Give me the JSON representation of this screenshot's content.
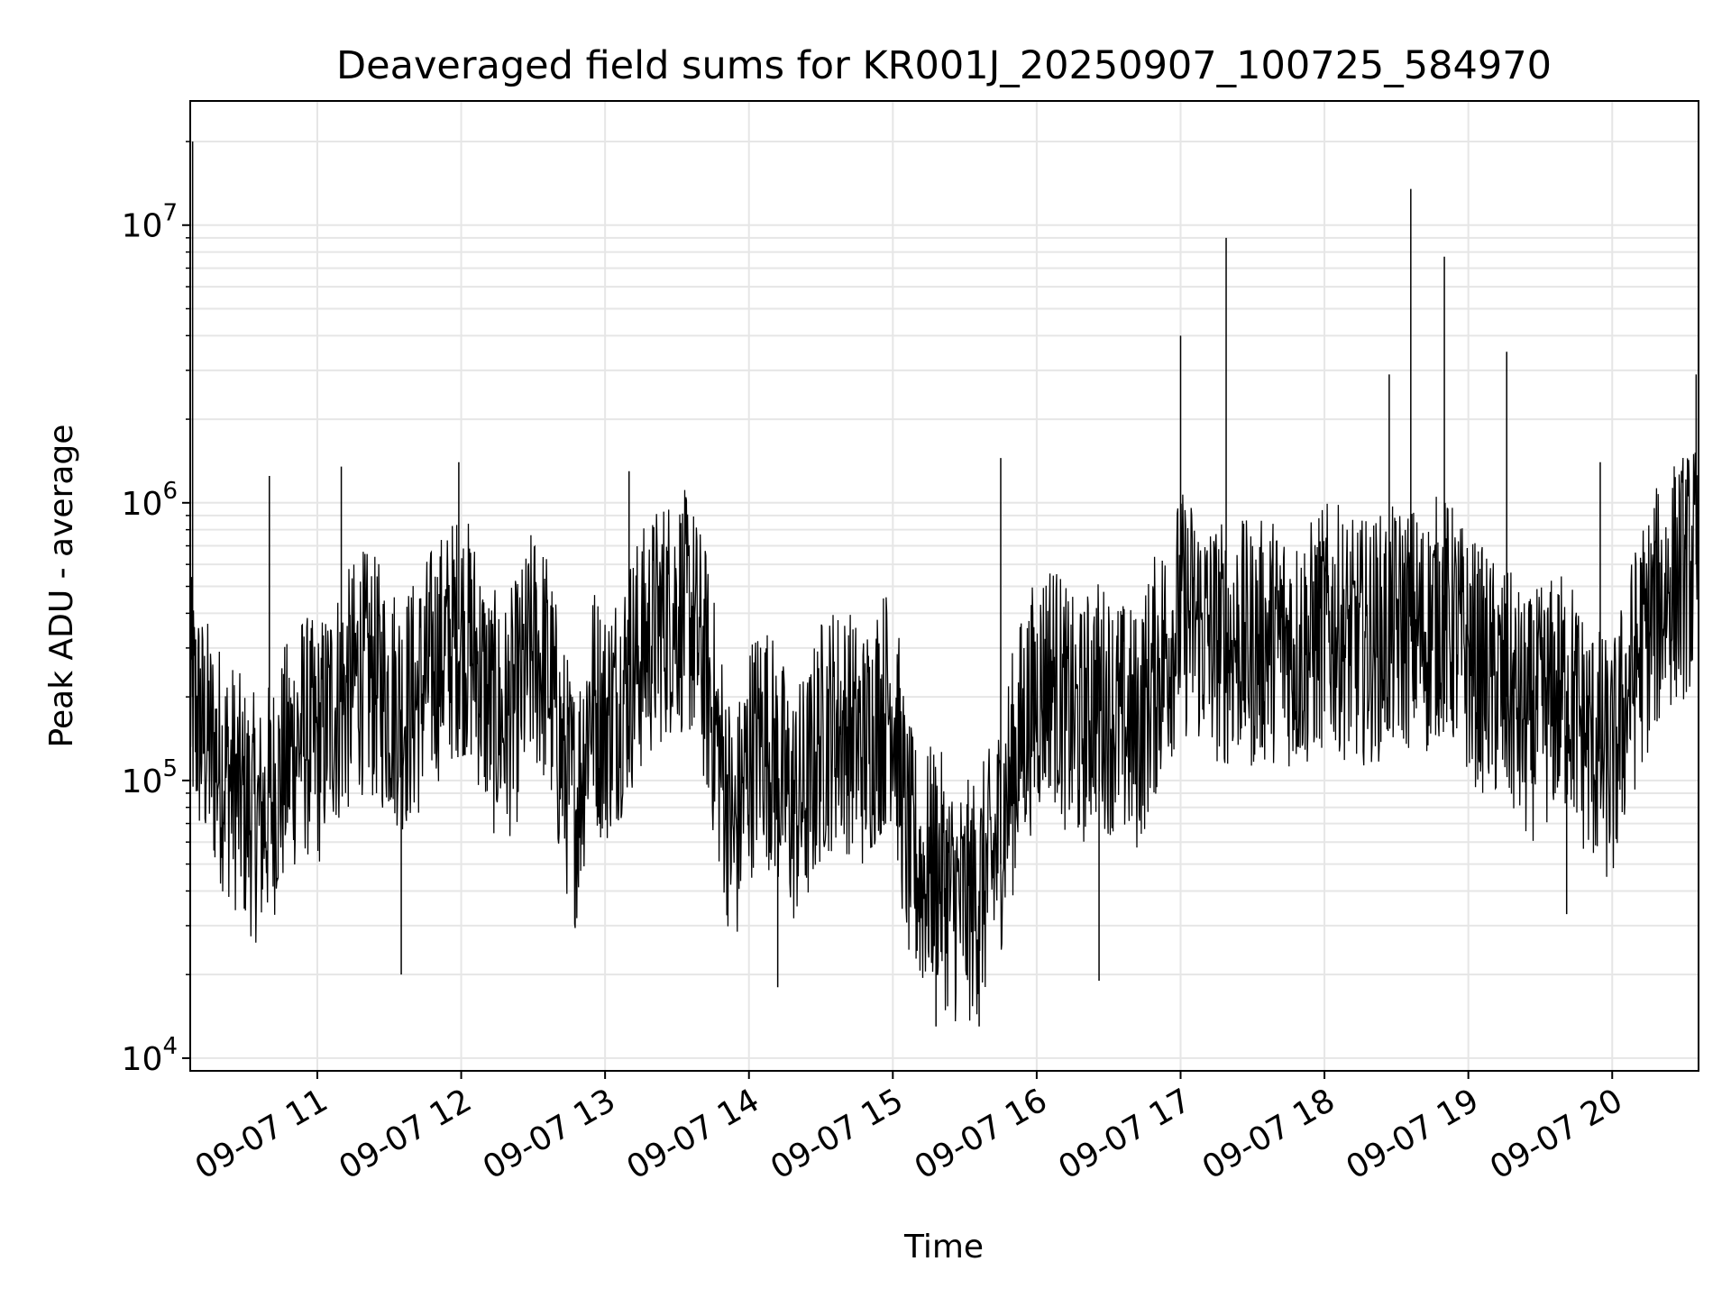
{
  "chart_data": {
    "type": "line",
    "title": "Deaveraged field sums for KR001J_20250907_100725_584970",
    "xlabel": "Time",
    "ylabel": "Peak ADU - average",
    "yscale": "log",
    "xlim": [
      "2025-09-07 10:07",
      "2025-09-07 20:36"
    ],
    "ylim": [
      9000,
      28000000
    ],
    "grid": true,
    "x_ticks": [
      {
        "value": "2025-09-07 11:00",
        "label": "09-07 11"
      },
      {
        "value": "2025-09-07 12:00",
        "label": "09-07 12"
      },
      {
        "value": "2025-09-07 13:00",
        "label": "09-07 13"
      },
      {
        "value": "2025-09-07 14:00",
        "label": "09-07 14"
      },
      {
        "value": "2025-09-07 15:00",
        "label": "09-07 15"
      },
      {
        "value": "2025-09-07 16:00",
        "label": "09-07 16"
      },
      {
        "value": "2025-09-07 17:00",
        "label": "09-07 17"
      },
      {
        "value": "2025-09-07 18:00",
        "label": "09-07 18"
      },
      {
        "value": "2025-09-07 19:00",
        "label": "09-07 19"
      },
      {
        "value": "2025-09-07 20:00",
        "label": "09-07 20"
      }
    ],
    "y_ticks": [
      {
        "value": 10000,
        "base": "10",
        "exp": "4"
      },
      {
        "value": 100000,
        "base": "10",
        "exp": "5"
      },
      {
        "value": 1000000,
        "base": "10",
        "exp": "6"
      },
      {
        "value": 10000000,
        "base": "10",
        "exp": "7"
      }
    ],
    "series": [
      {
        "color": "#000000",
        "x": [
          "2025-09-07 10:07",
          "2025-09-07 10:12",
          "2025-09-07 10:18",
          "2025-09-07 10:24",
          "2025-09-07 10:30",
          "2025-09-07 10:36",
          "2025-09-07 10:42",
          "2025-09-07 10:48",
          "2025-09-07 10:54",
          "2025-09-07 11:00",
          "2025-09-07 11:06",
          "2025-09-07 11:12",
          "2025-09-07 11:18",
          "2025-09-07 11:24",
          "2025-09-07 11:30",
          "2025-09-07 11:36",
          "2025-09-07 11:42",
          "2025-09-07 11:48",
          "2025-09-07 11:54",
          "2025-09-07 12:00",
          "2025-09-07 12:06",
          "2025-09-07 12:12",
          "2025-09-07 12:18",
          "2025-09-07 12:24",
          "2025-09-07 12:30",
          "2025-09-07 12:36",
          "2025-09-07 12:42",
          "2025-09-07 12:48",
          "2025-09-07 12:54",
          "2025-09-07 13:00",
          "2025-09-07 13:06",
          "2025-09-07 13:12",
          "2025-09-07 13:18",
          "2025-09-07 13:24",
          "2025-09-07 13:30",
          "2025-09-07 13:36",
          "2025-09-07 13:42",
          "2025-09-07 13:48",
          "2025-09-07 13:54",
          "2025-09-07 14:00",
          "2025-09-07 14:06",
          "2025-09-07 14:12",
          "2025-09-07 14:18",
          "2025-09-07 14:24",
          "2025-09-07 14:30",
          "2025-09-07 14:36",
          "2025-09-07 14:42",
          "2025-09-07 14:48",
          "2025-09-07 14:54",
          "2025-09-07 15:00",
          "2025-09-07 15:06",
          "2025-09-07 15:12",
          "2025-09-07 15:18",
          "2025-09-07 15:24",
          "2025-09-07 15:30",
          "2025-09-07 15:36",
          "2025-09-07 15:42",
          "2025-09-07 15:48",
          "2025-09-07 15:54",
          "2025-09-07 16:00",
          "2025-09-07 16:06",
          "2025-09-07 16:12",
          "2025-09-07 16:18",
          "2025-09-07 16:24",
          "2025-09-07 16:30",
          "2025-09-07 16:36",
          "2025-09-07 16:42",
          "2025-09-07 16:48",
          "2025-09-07 16:54",
          "2025-09-07 17:00",
          "2025-09-07 17:06",
          "2025-09-07 17:12",
          "2025-09-07 17:18",
          "2025-09-07 17:24",
          "2025-09-07 17:30",
          "2025-09-07 17:36",
          "2025-09-07 17:42",
          "2025-09-07 17:48",
          "2025-09-07 17:54",
          "2025-09-07 18:00",
          "2025-09-07 18:06",
          "2025-09-07 18:12",
          "2025-09-07 18:18",
          "2025-09-07 18:24",
          "2025-09-07 18:30",
          "2025-09-07 18:36",
          "2025-09-07 18:42",
          "2025-09-07 18:48",
          "2025-09-07 18:54",
          "2025-09-07 19:00",
          "2025-09-07 19:06",
          "2025-09-07 19:12",
          "2025-09-07 19:18",
          "2025-09-07 19:24",
          "2025-09-07 19:30",
          "2025-09-07 19:36",
          "2025-09-07 19:42",
          "2025-09-07 19:48",
          "2025-09-07 19:54",
          "2025-09-07 20:00",
          "2025-09-07 20:06",
          "2025-09-07 20:12",
          "2025-09-07 20:18",
          "2025-09-07 20:24",
          "2025-09-07 20:30",
          "2025-09-07 20:36"
        ],
        "y": [
          200000,
          150000,
          120000,
          100000,
          80000,
          70000,
          90000,
          120000,
          150000,
          130000,
          180000,
          200000,
          250000,
          230000,
          200000,
          180000,
          200000,
          260000,
          300000,
          350000,
          280000,
          180000,
          160000,
          200000,
          300000,
          250000,
          120000,
          80000,
          200000,
          160000,
          200000,
          260000,
          320000,
          380000,
          420000,
          380000,
          250000,
          120000,
          60000,
          120000,
          150000,
          110000,
          80000,
          90000,
          140000,
          160000,
          150000,
          130000,
          170000,
          200000,
          60000,
          45000,
          50000,
          38000,
          35000,
          40000,
          50000,
          90000,
          150000,
          200000,
          250000,
          180000,
          150000,
          200000,
          180000,
          160000,
          150000,
          220000,
          300000,
          400000,
          380000,
          330000,
          310000,
          320000,
          300000,
          320000,
          330000,
          290000,
          310000,
          360000,
          350000,
          310000,
          320000,
          330000,
          350000,
          360000,
          330000,
          400000,
          350000,
          280000,
          250000,
          220000,
          200000,
          160000,
          180000,
          200000,
          210000,
          150000,
          130000,
          110000,
          200000,
          300000,
          400000,
          500000,
          550000,
          600000
        ],
        "spikes": [
          {
            "x": "2025-09-07 10:08",
            "y": 20000000
          },
          {
            "x": "2025-09-07 10:40",
            "y": 1250000
          },
          {
            "x": "2025-09-07 11:10",
            "y": 1350000
          },
          {
            "x": "2025-09-07 11:35",
            "y": 20000
          },
          {
            "x": "2025-09-07 11:59",
            "y": 1400000
          },
          {
            "x": "2025-09-07 13:10",
            "y": 1300000
          },
          {
            "x": "2025-09-07 14:12",
            "y": 18000
          },
          {
            "x": "2025-09-07 15:18",
            "y": 13000
          },
          {
            "x": "2025-09-07 15:36",
            "y": 13000
          },
          {
            "x": "2025-09-07 15:45",
            "y": 1450000
          },
          {
            "x": "2025-09-07 16:26",
            "y": 19000
          },
          {
            "x": "2025-09-07 17:00",
            "y": 4000000
          },
          {
            "x": "2025-09-07 17:19",
            "y": 9000000
          },
          {
            "x": "2025-09-07 18:27",
            "y": 2900000
          },
          {
            "x": "2025-09-07 18:36",
            "y": 13500000
          },
          {
            "x": "2025-09-07 18:50",
            "y": 7700000
          },
          {
            "x": "2025-09-07 19:16",
            "y": 3500000
          },
          {
            "x": "2025-09-07 19:41",
            "y": 33000
          },
          {
            "x": "2025-09-07 19:55",
            "y": 1400000
          },
          {
            "x": "2025-09-07 20:35",
            "y": 2900000
          }
        ]
      }
    ]
  }
}
